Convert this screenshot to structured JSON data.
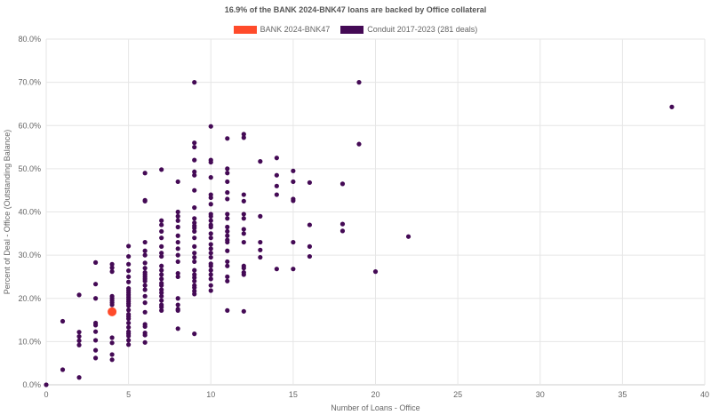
{
  "chart_data": {
    "type": "scatter",
    "title": "16.9% of the BANK 2024-BNK47 loans are backed by Office collateral",
    "xlabel": "Number of Loans - Office",
    "ylabel": "Percent of Deal - Office (Outstanding Balance)",
    "xlim": [
      0,
      40
    ],
    "ylim": [
      0,
      80
    ],
    "xticks": [
      "0",
      "5",
      "10",
      "15",
      "20",
      "25",
      "30",
      "35",
      "40"
    ],
    "yticks": [
      "0.0%",
      "10.0%",
      "20.0%",
      "30.0%",
      "40.0%",
      "50.0%",
      "60.0%",
      "70.0%",
      "80.0%"
    ],
    "grid": true,
    "legend_placement": "top-center",
    "series": [
      {
        "name": "BANK 2024-BNK47",
        "color": "#ff4b2b",
        "points": [
          [
            4,
            16.9
          ]
        ]
      },
      {
        "name": "Conduit 2017-2023 (281 deals)",
        "color": "#440a55",
        "columns": {
          "0": [
            0
          ],
          "1": [
            14.7,
            3.5
          ],
          "2": [
            20.8,
            12.2,
            11.2,
            10.2,
            9.2,
            1.7
          ],
          "3": [
            28.3,
            23.3,
            20,
            14.3,
            13.8,
            12.3,
            10.3,
            8,
            6.2
          ],
          "4": [
            27.9,
            27.1,
            26.2,
            20.5,
            20,
            19.5,
            19,
            18.5,
            10.9,
            9.7,
            7,
            5.8
          ],
          "5": [
            32.1,
            29.7,
            27.9,
            26.4,
            25,
            23.8,
            22.3,
            21.8,
            21.3,
            20.8,
            20.3,
            19.8,
            19.3,
            18.8,
            18.3,
            17.3,
            16.3,
            15.8,
            15.3,
            14.3,
            13.3,
            12.3,
            11.8,
            11.3,
            10.3,
            9.3
          ],
          "6": [
            49,
            42.7,
            42.5,
            33,
            31,
            30,
            28.2,
            27,
            26,
            25.5,
            25,
            24.5,
            24,
            23,
            22,
            20.5,
            19,
            16.8,
            14,
            13.5,
            12,
            11.5,
            9.8
          ],
          "7": [
            49.8,
            38,
            37,
            35.5,
            34,
            32,
            30.5,
            29.7,
            27.5,
            26.5,
            25.5,
            24.5,
            23.5,
            23,
            22,
            21.3,
            20.5,
            19.5,
            18.5,
            18,
            17.2
          ],
          "8": [
            47,
            40,
            39,
            38,
            36.5,
            34.5,
            33,
            31.5,
            30,
            28.5,
            25.8,
            25,
            20,
            18.5,
            17.5,
            17.2,
            13
          ],
          "9": [
            70,
            56,
            55,
            52,
            49.3,
            48.5,
            45,
            41,
            38.5,
            37.5,
            36.8,
            36.3,
            35.5,
            34,
            32,
            30.5,
            29.5,
            28.5,
            26.5,
            25.5,
            24.8,
            24,
            23,
            22.5,
            21.7,
            21,
            11.8
          ],
          "10": [
            59.8,
            52,
            51.5,
            48,
            44,
            43.3,
            41.8,
            39.5,
            39,
            38,
            37,
            36.5,
            35,
            34,
            32.5,
            31.5,
            30.5,
            29.5,
            28,
            27.5,
            26.5,
            25.5,
            24.5,
            23,
            21.8
          ],
          "11": [
            57,
            50,
            49,
            47,
            44.5,
            43,
            39.5,
            38.5,
            36.5,
            35.5,
            34.5,
            33.5,
            33,
            31,
            28.5,
            27.5,
            25,
            24,
            17.2
          ],
          "12": [
            58,
            57.2,
            44,
            42.5,
            39.5,
            38.5,
            36,
            35,
            33,
            27.5,
            27,
            26,
            25.5,
            17
          ],
          "13": [
            51.7,
            39,
            33,
            31.2,
            29.5
          ],
          "14": [
            52.5,
            48.5,
            46,
            44,
            26.8
          ],
          "15": [
            49.5,
            47,
            43,
            42.6,
            33,
            26.8
          ],
          "16": [
            46.8,
            37,
            32,
            29.7
          ],
          "18": [
            46.5,
            37.2,
            35.6
          ],
          "19": [
            70,
            55.7
          ],
          "20": [
            26.2
          ],
          "22": [
            34.3
          ],
          "38": [
            64.3
          ]
        }
      }
    ]
  }
}
